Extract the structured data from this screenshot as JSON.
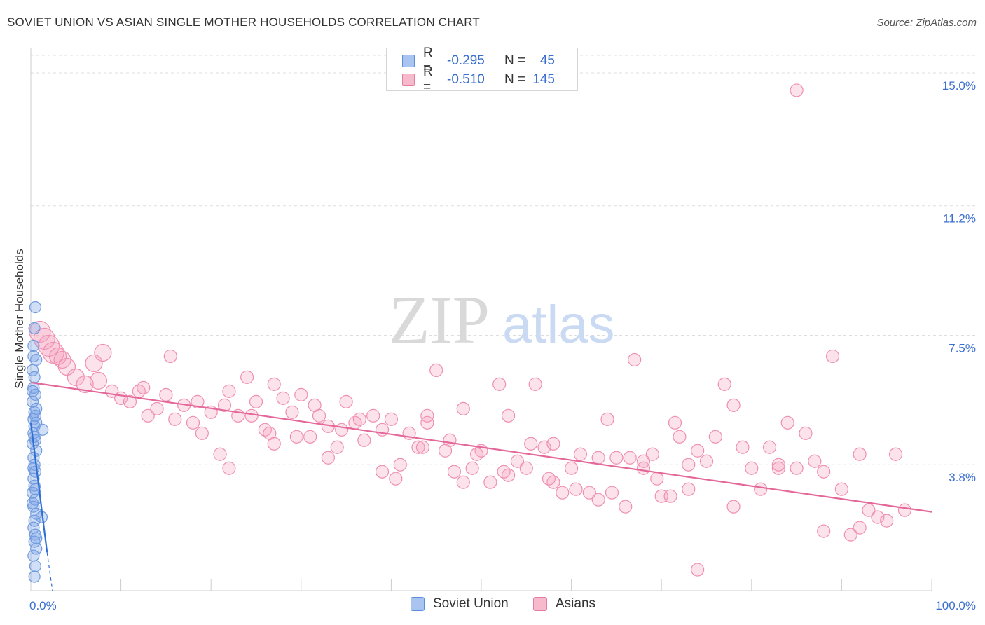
{
  "header": {
    "title": "SOVIET UNION VS ASIAN SINGLE MOTHER HOUSEHOLDS CORRELATION CHART",
    "source": "Source: ZipAtlas.com"
  },
  "watermark": {
    "zip": "ZIP",
    "atlas": "atlas"
  },
  "legend": {
    "rows": [
      {
        "r_label": "R =",
        "r_value": "-0.295",
        "n_label": "N =",
        "n_value": "45",
        "color": "#a9c4f0",
        "border": "#5b8fd9"
      },
      {
        "r_label": "R =",
        "r_value": "-0.510",
        "n_label": "N =",
        "n_value": "145",
        "color": "#f7b9cc",
        "border": "#e57fa0"
      }
    ]
  },
  "bottom_legend": [
    {
      "label": "Soviet Union",
      "color": "#a9c4f0",
      "border": "#5b8fd9"
    },
    {
      "label": "Asians",
      "color": "#f7b9cc",
      "border": "#e57fa0"
    }
  ],
  "colors": {
    "soviet_fill": "rgba(120,160,230,0.35)",
    "soviet_stroke": "#6f9be0",
    "soviet_line": "#2f6fd6",
    "asian_fill": "rgba(244,160,190,0.30)",
    "asian_stroke": "#ef8fb0",
    "asian_line": "#e4679a",
    "tick_label": "#3b6fcf",
    "grid": "#dddddd"
  },
  "chart_data": {
    "type": "scatter",
    "title": "SOVIET UNION VS ASIAN SINGLE MOTHER HOUSEHOLDS CORRELATION CHART",
    "xlabel": "",
    "ylabel": "Single Mother Households",
    "xlim": [
      0,
      100
    ],
    "ylim": [
      0.2,
      15.5
    ],
    "x_tick_labels": [
      "0.0%",
      "100.0%"
    ],
    "y_ticks": [
      3.8,
      7.5,
      11.2,
      15.0
    ],
    "y_tick_labels": [
      "3.8%",
      "7.5%",
      "11.2%",
      "15.0%"
    ],
    "grid": "horizontal dashed",
    "series": [
      {
        "name": "Soviet Union",
        "r": -0.295,
        "n": 45,
        "trend": {
          "x": [
            0.0,
            1.8
          ],
          "y": [
            5.0,
            1.3
          ]
        },
        "trend_ext": {
          "x": [
            1.8,
            2.4
          ],
          "y": [
            1.3,
            0.2
          ]
        },
        "points": [
          [
            0.5,
            8.3
          ],
          [
            0.4,
            7.7
          ],
          [
            0.3,
            7.2
          ],
          [
            0.6,
            6.8
          ],
          [
            0.2,
            6.5
          ],
          [
            0.4,
            6.3
          ],
          [
            0.3,
            6.0
          ],
          [
            0.5,
            5.8
          ],
          [
            0.2,
            5.6
          ],
          [
            0.4,
            5.3
          ],
          [
            0.3,
            5.1
          ],
          [
            0.6,
            5.0
          ],
          [
            0.4,
            4.9
          ],
          [
            1.3,
            4.8
          ],
          [
            0.3,
            4.7
          ],
          [
            0.5,
            4.5
          ],
          [
            0.2,
            4.4
          ],
          [
            0.6,
            4.2
          ],
          [
            0.3,
            4.0
          ],
          [
            0.4,
            3.8
          ],
          [
            0.5,
            3.6
          ],
          [
            0.3,
            3.4
          ],
          [
            0.4,
            3.2
          ],
          [
            0.2,
            3.0
          ],
          [
            0.5,
            2.8
          ],
          [
            0.3,
            2.6
          ],
          [
            0.6,
            2.4
          ],
          [
            1.2,
            2.3
          ],
          [
            0.4,
            2.2
          ],
          [
            0.3,
            2.0
          ],
          [
            0.5,
            1.8
          ],
          [
            0.4,
            1.6
          ],
          [
            0.6,
            1.4
          ],
          [
            0.3,
            1.2
          ],
          [
            0.5,
            0.9
          ],
          [
            0.4,
            0.6
          ],
          [
            0.2,
            5.9
          ],
          [
            0.6,
            5.4
          ],
          [
            0.4,
            4.6
          ],
          [
            0.3,
            3.7
          ],
          [
            0.5,
            3.1
          ],
          [
            0.2,
            2.7
          ],
          [
            0.6,
            1.7
          ],
          [
            0.3,
            6.9
          ],
          [
            0.5,
            5.2
          ]
        ]
      },
      {
        "name": "Asians",
        "r": -0.51,
        "n": 145,
        "trend": {
          "x": [
            0,
            100
          ],
          "y": [
            6.15,
            2.45
          ]
        },
        "points": [
          [
            85,
            14.5
          ],
          [
            1,
            7.6
          ],
          [
            1.5,
            7.4
          ],
          [
            2,
            7.2
          ],
          [
            2.5,
            7.0
          ],
          [
            3,
            6.9
          ],
          [
            3.5,
            6.8
          ],
          [
            4,
            6.6
          ],
          [
            5,
            6.3
          ],
          [
            6,
            6.1
          ],
          [
            7,
            6.7
          ],
          [
            7.5,
            6.2
          ],
          [
            8,
            7.0
          ],
          [
            9,
            5.9
          ],
          [
            10,
            5.7
          ],
          [
            11,
            5.6
          ],
          [
            12,
            5.9
          ],
          [
            13,
            5.2
          ],
          [
            14,
            5.4
          ],
          [
            15,
            5.8
          ],
          [
            16,
            5.1
          ],
          [
            17,
            5.5
          ],
          [
            18,
            5.0
          ],
          [
            19,
            4.7
          ],
          [
            20,
            5.3
          ],
          [
            21,
            4.1
          ],
          [
            22,
            5.9
          ],
          [
            23,
            5.2
          ],
          [
            24,
            6.3
          ],
          [
            25,
            5.6
          ],
          [
            26,
            4.8
          ],
          [
            27,
            6.1
          ],
          [
            28,
            5.7
          ],
          [
            29,
            5.3
          ],
          [
            30,
            5.8
          ],
          [
            31,
            4.6
          ],
          [
            32,
            5.2
          ],
          [
            33,
            4.9
          ],
          [
            34,
            4.3
          ],
          [
            35,
            5.6
          ],
          [
            36,
            5.0
          ],
          [
            37,
            4.5
          ],
          [
            38,
            5.2
          ],
          [
            39,
            4.8
          ],
          [
            40,
            5.1
          ],
          [
            41,
            3.8
          ],
          [
            42,
            4.7
          ],
          [
            43,
            4.3
          ],
          [
            44,
            5.2
          ],
          [
            45,
            6.5
          ],
          [
            46,
            4.2
          ],
          [
            47,
            3.6
          ],
          [
            48,
            5.4
          ],
          [
            49,
            3.7
          ],
          [
            50,
            4.2
          ],
          [
            51,
            3.3
          ],
          [
            52,
            6.1
          ],
          [
            53,
            5.2
          ],
          [
            54,
            3.9
          ],
          [
            55,
            3.7
          ],
          [
            56,
            6.1
          ],
          [
            57,
            4.3
          ],
          [
            58,
            3.3
          ],
          [
            59,
            3.0
          ],
          [
            60,
            3.7
          ],
          [
            61,
            4.1
          ],
          [
            62,
            3.0
          ],
          [
            63,
            2.8
          ],
          [
            64,
            5.1
          ],
          [
            65,
            4.0
          ],
          [
            66,
            2.6
          ],
          [
            67,
            6.8
          ],
          [
            68,
            3.7
          ],
          [
            69,
            4.1
          ],
          [
            70,
            2.9
          ],
          [
            71,
            2.9
          ],
          [
            72,
            4.6
          ],
          [
            73,
            3.8
          ],
          [
            74,
            4.2
          ],
          [
            75,
            3.9
          ],
          [
            76,
            4.6
          ],
          [
            77,
            6.1
          ],
          [
            78,
            2.6
          ],
          [
            79,
            4.3
          ],
          [
            80,
            3.7
          ],
          [
            81,
            3.1
          ],
          [
            82,
            4.3
          ],
          [
            83,
            3.7
          ],
          [
            84,
            5.0
          ],
          [
            85,
            3.7
          ],
          [
            86,
            4.7
          ],
          [
            87,
            3.9
          ],
          [
            88,
            1.9
          ],
          [
            89,
            6.9
          ],
          [
            90,
            3.1
          ],
          [
            91,
            1.8
          ],
          [
            92,
            4.1
          ],
          [
            93,
            2.5
          ],
          [
            94,
            2.3
          ],
          [
            95,
            2.2
          ],
          [
            96,
            4.1
          ],
          [
            97,
            2.5
          ],
          [
            74,
            0.8
          ],
          [
            22,
            3.7
          ],
          [
            27,
            4.4
          ],
          [
            33,
            4.0
          ],
          [
            39,
            3.6
          ],
          [
            44,
            5.0
          ],
          [
            48,
            3.3
          ],
          [
            53,
            3.5
          ],
          [
            58,
            4.4
          ],
          [
            63,
            4.0
          ],
          [
            68,
            3.9
          ],
          [
            73,
            3.1
          ],
          [
            78,
            5.5
          ],
          [
            83,
            3.8
          ],
          [
            88,
            3.6
          ],
          [
            92,
            2.0
          ],
          [
            12.5,
            6.0
          ],
          [
            15.5,
            6.9
          ],
          [
            18.5,
            5.6
          ],
          [
            21.5,
            5.5
          ],
          [
            24.5,
            5.2
          ],
          [
            26.5,
            4.7
          ],
          [
            29.5,
            4.6
          ],
          [
            31.5,
            5.5
          ],
          [
            34.5,
            4.8
          ],
          [
            36.5,
            5.1
          ],
          [
            40.5,
            3.4
          ],
          [
            43.5,
            4.3
          ],
          [
            46.5,
            4.5
          ],
          [
            49.5,
            4.1
          ],
          [
            52.5,
            3.6
          ],
          [
            55.5,
            4.4
          ],
          [
            57.5,
            3.4
          ],
          [
            60.5,
            3.1
          ],
          [
            64.5,
            3.0
          ],
          [
            66.5,
            4.0
          ],
          [
            69.5,
            3.4
          ],
          [
            71.5,
            5.0
          ]
        ]
      }
    ]
  }
}
